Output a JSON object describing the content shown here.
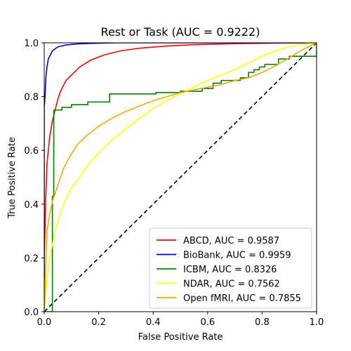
{
  "chart_data": {
    "type": "line",
    "title": "Rest or Task (AUC = 0.9222)",
    "xlabel": "False Positive Rate",
    "ylabel": "True Positive Rate",
    "xlim": [
      0.0,
      1.0
    ],
    "ylim": [
      0.0,
      1.0
    ],
    "xticks": [
      "0.0",
      "0.2",
      "0.4",
      "0.6",
      "0.8",
      "1.0"
    ],
    "yticks": [
      "0.0",
      "0.2",
      "0.4",
      "0.6",
      "0.8",
      "1.0"
    ],
    "grid": false,
    "legend_position": "lower-right",
    "series": [
      {
        "name": "ABCD, AUC = 0.9587",
        "color": "#ff0000",
        "step": false,
        "x": [
          0.0,
          0.0,
          0.005,
          0.01,
          0.02,
          0.03,
          0.04,
          0.05,
          0.06,
          0.08,
          0.1,
          0.13,
          0.17,
          0.22,
          0.28,
          0.35,
          0.45,
          0.55,
          0.7,
          0.85,
          1.0
        ],
        "y": [
          0.0,
          0.2,
          0.4,
          0.55,
          0.65,
          0.71,
          0.75,
          0.79,
          0.82,
          0.86,
          0.88,
          0.91,
          0.935,
          0.955,
          0.97,
          0.98,
          0.988,
          0.993,
          0.997,
          0.999,
          1.0
        ]
      },
      {
        "name": "BioBank, AUC = 0.9959",
        "color": "#0000cc",
        "step": false,
        "x": [
          0.0,
          0.0,
          0.003,
          0.006,
          0.01,
          0.015,
          0.02,
          0.03,
          0.05,
          0.08,
          0.12,
          0.17,
          0.22,
          0.26,
          1.0
        ],
        "y": [
          0.0,
          0.76,
          0.8,
          0.87,
          0.91,
          0.94,
          0.95,
          0.97,
          0.985,
          0.992,
          0.996,
          0.998,
          0.999,
          1.0,
          1.0
        ]
      },
      {
        "name": "ICBM, AUC = 0.8326",
        "color": "#008000",
        "step": true,
        "x": [
          0.0,
          0.03,
          0.035,
          0.065,
          0.1,
          0.16,
          0.24,
          0.41,
          0.5,
          0.58,
          0.62,
          0.65,
          0.72,
          0.75,
          0.77,
          0.79,
          0.81,
          0.86,
          0.9,
          0.95,
          1.0
        ],
        "y": [
          0.0,
          0.43,
          0.75,
          0.76,
          0.77,
          0.78,
          0.81,
          0.815,
          0.82,
          0.83,
          0.85,
          0.86,
          0.87,
          0.89,
          0.9,
          0.91,
          0.92,
          0.94,
          0.95,
          0.95,
          1.0
        ]
      },
      {
        "name": "NDAR, AUC = 0.7562",
        "color": "#ffff00",
        "step": false,
        "x": [
          0.0,
          0.01,
          0.02,
          0.04,
          0.06,
          0.08,
          0.1,
          0.13,
          0.16,
          0.2,
          0.25,
          0.3,
          0.35,
          0.4,
          0.45,
          0.5,
          0.55,
          0.6,
          0.65,
          0.7,
          0.75,
          0.8,
          0.85,
          0.9,
          0.95,
          1.0
        ],
        "y": [
          0.0,
          0.12,
          0.2,
          0.3,
          0.37,
          0.42,
          0.46,
          0.5,
          0.545,
          0.59,
          0.64,
          0.68,
          0.72,
          0.755,
          0.785,
          0.81,
          0.835,
          0.86,
          0.88,
          0.9,
          0.925,
          0.95,
          0.97,
          0.985,
          0.995,
          1.0
        ]
      },
      {
        "name": "Open fMRI, AUC = 0.7855",
        "color": "#ffa500",
        "step": false,
        "x": [
          0.0,
          0.01,
          0.02,
          0.03,
          0.04,
          0.05,
          0.07,
          0.09,
          0.12,
          0.15,
          0.2,
          0.25,
          0.3,
          0.35,
          0.4,
          0.45,
          0.5,
          0.55,
          0.6,
          0.65,
          0.7,
          0.75,
          0.8,
          0.85,
          0.9,
          0.95,
          1.0
        ],
        "y": [
          0.0,
          0.3,
          0.36,
          0.41,
          0.44,
          0.47,
          0.53,
          0.57,
          0.62,
          0.65,
          0.69,
          0.72,
          0.745,
          0.765,
          0.785,
          0.8,
          0.815,
          0.825,
          0.835,
          0.845,
          0.86,
          0.87,
          0.89,
          0.915,
          0.945,
          0.975,
          1.0
        ]
      }
    ],
    "reference_line": {
      "color": "#000000",
      "dashed": true,
      "x": [
        0.0,
        1.0
      ],
      "y": [
        0.0,
        1.0
      ]
    }
  }
}
